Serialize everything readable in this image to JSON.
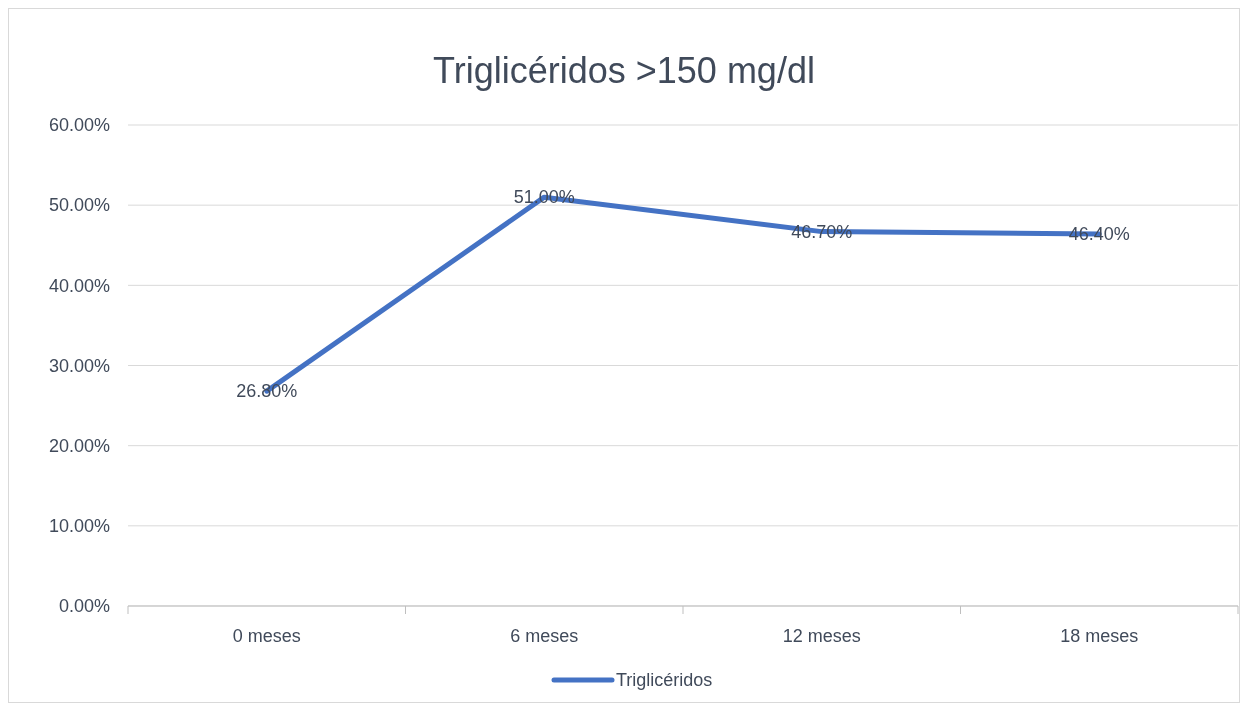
{
  "chart_data": {
    "type": "line",
    "title": "Triglicéridos >150 mg/dl",
    "categories": [
      "0 meses",
      "6 meses",
      "12 meses",
      "18 meses"
    ],
    "series": [
      {
        "name": "Triglicéridos",
        "color": "#4472c4",
        "values": [
          26.8,
          51,
          46.7,
          46.4
        ],
        "value_labels": [
          "26.80%",
          "51.00%",
          "46.70%",
          "46.40%"
        ]
      }
    ],
    "ylim": [
      0,
      60
    ],
    "yticks": [
      {
        "value": 0,
        "label": "0.00%"
      },
      {
        "value": 10,
        "label": "10.00%"
      },
      {
        "value": 20,
        "label": "20.00%"
      },
      {
        "value": 30,
        "label": "30.00%"
      },
      {
        "value": 40,
        "label": "40.00%"
      },
      {
        "value": 50,
        "label": "50.00%"
      },
      {
        "value": 60,
        "label": "60.00%"
      }
    ],
    "grid": "y",
    "legend": "bottom",
    "marker": "none",
    "line_style": "solid"
  }
}
